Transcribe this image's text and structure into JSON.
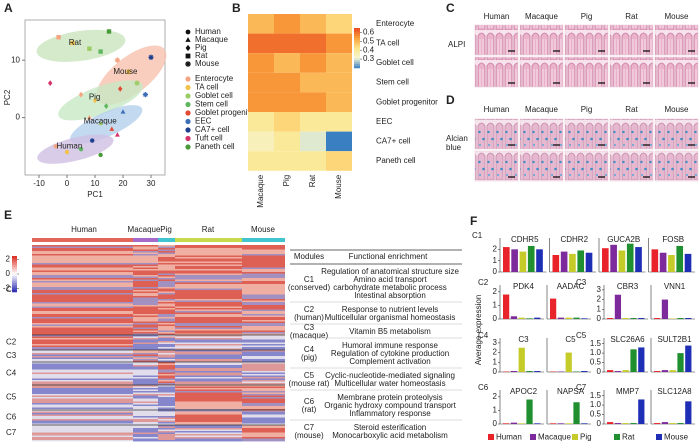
{
  "species": [
    "Human",
    "Macaque",
    "Pig",
    "Rat",
    "Mouse"
  ],
  "panel_a": {
    "letter": "A",
    "xlabel": "PC1",
    "ylabel": "PC2",
    "xlim": [
      -15,
      35
    ],
    "ylim": [
      -10,
      17
    ],
    "xticks": [
      -10,
      0,
      10,
      20,
      30
    ],
    "yticks": [
      0,
      10
    ],
    "species_shapes": [
      "circle",
      "triangle",
      "diamond",
      "square",
      "star"
    ],
    "ellipses": [
      {
        "label": "Rat",
        "color": "#c9e5bd",
        "center": [
          5,
          12.5
        ],
        "rx": 16,
        "ry": 2.6,
        "angle": -8
      },
      {
        "label": "Mouse",
        "color": "#f7c2ae",
        "center": [
          23,
          7.4
        ],
        "rx": 15,
        "ry": 3.2,
        "angle": -38
      },
      {
        "label": "Pig",
        "color": "#c8e8c4",
        "center": [
          12,
          3
        ],
        "rx": 16,
        "ry": 2.4,
        "angle": -20
      },
      {
        "label": "Macaque",
        "color": "#b3cfec",
        "center": [
          14,
          -1.2
        ],
        "rx": 14,
        "ry": 2.1,
        "angle": -24
      },
      {
        "label": "Human",
        "color": "#d0bfe3",
        "center": [
          3,
          -5.5
        ],
        "rx": 14,
        "ry": 2.0,
        "angle": -14
      }
    ],
    "cell_types": [
      {
        "name": "Enterocyte",
        "color": "#f4a582"
      },
      {
        "name": "TA cell",
        "color": "#f2c14e"
      },
      {
        "name": "Goblet cell",
        "color": "#9ccc65"
      },
      {
        "name": "Stem cell",
        "color": "#5fb760"
      },
      {
        "name": "Goblet progenitor",
        "color": "#e34a33"
      },
      {
        "name": "EEC",
        "color": "#3b6fb6"
      },
      {
        "name": "CA7+ cell",
        "color": "#1f3f8f"
      },
      {
        "name": "Tuft cell",
        "color": "#d6336c"
      },
      {
        "name": "Paneth cell",
        "color": "#4a9a3a"
      }
    ],
    "points": [
      [
        -3,
        14,
        3,
        0
      ],
      [
        2,
        13,
        3,
        1
      ],
      [
        8,
        12,
        3,
        2
      ],
      [
        12,
        11.5,
        3,
        3
      ],
      [
        15,
        15,
        3,
        8
      ],
      [
        18,
        10,
        4,
        0
      ],
      [
        22,
        8,
        4,
        1
      ],
      [
        25,
        6,
        4,
        2
      ],
      [
        28,
        4,
        4,
        5
      ],
      [
        30,
        10.5,
        4,
        6
      ],
      [
        5,
        4,
        2,
        0
      ],
      [
        10,
        3,
        2,
        1
      ],
      [
        14,
        2,
        2,
        3
      ],
      [
        19,
        5,
        2,
        4
      ],
      [
        -6,
        6,
        2,
        7
      ],
      [
        8,
        0,
        1,
        0
      ],
      [
        12,
        -1,
        1,
        2
      ],
      [
        16,
        -2,
        1,
        4
      ],
      [
        20,
        1,
        1,
        5
      ],
      [
        18,
        -3,
        1,
        7
      ],
      [
        -4,
        -5,
        0,
        0
      ],
      [
        0,
        -6,
        0,
        1
      ],
      [
        5,
        -5.5,
        0,
        3
      ],
      [
        9,
        -4,
        0,
        6
      ],
      [
        12,
        -6.5,
        0,
        8
      ]
    ]
  },
  "panel_b": {
    "letter": "B",
    "columns": [
      "Macaque",
      "Pig",
      "Rat",
      "Mouse"
    ],
    "rows": [
      "Enterocyte",
      "TA cell",
      "Goblet cell",
      "Stem cell",
      "Goblet progenitor",
      "EEC",
      "CA7+ cell",
      "Paneth cell"
    ],
    "values": [
      [
        0.5,
        0.55,
        0.5,
        0.45
      ],
      [
        0.6,
        0.6,
        0.6,
        0.55
      ],
      [
        0.55,
        0.5,
        0.55,
        0.5
      ],
      [
        0.55,
        0.55,
        0.5,
        0.5
      ],
      [
        0.55,
        0.55,
        0.55,
        0.5
      ],
      [
        0.4,
        0.45,
        0.4,
        0.4
      ],
      [
        0.35,
        0.4,
        0.3,
        0.2
      ],
      [
        0.4,
        0.4,
        0.4,
        0.45
      ]
    ],
    "clim": [
      0.2,
      0.65
    ],
    "cticks": [
      0.6,
      0.5,
      0.4,
      0.3
    ],
    "colormap": [
      "#3a7fc1",
      "#f4f6d2",
      "#fde58a",
      "#f9a13c",
      "#e8471f"
    ]
  },
  "panel_c": {
    "letter": "C",
    "stain": "ALPI"
  },
  "panel_d": {
    "letter": "D",
    "stain": "Alcian blue"
  },
  "panel_e": {
    "letter": "E",
    "bar_colors": [
      "#e4655a",
      "#a66bc9",
      "#40c4d0",
      "#c8d94a",
      "#40c4d0"
    ],
    "cticks": [
      2,
      0,
      -2
    ],
    "clim": [
      -2.5,
      2.5
    ],
    "clusters": [
      "C1",
      "C2",
      "C3",
      "C4",
      "C5",
      "C6",
      "C7"
    ],
    "table_header": [
      "Modules",
      "Functional enrichment"
    ],
    "table": [
      {
        "module": "C1",
        "group": "(conserved)",
        "terms": [
          "Regulation of anatomical structure size",
          "Amino acid transport",
          "carbohydrate metabolic process",
          "Intestinal absorption"
        ]
      },
      {
        "module": "C2",
        "group": "(human)",
        "terms": [
          "Response to nutrient levels",
          "Multicellular organismal homeostasis"
        ]
      },
      {
        "module": "C3",
        "group": "(macaque)",
        "terms": [
          "Vitamin B5 metabolism"
        ]
      },
      {
        "module": "C4",
        "group": "(pig)",
        "terms": [
          "Humoral immune response",
          "Regulation of cytokine production",
          "Complement activation"
        ]
      },
      {
        "module": "C5",
        "group": "(mouse rat)",
        "terms": [
          "Cyclic-nucleotide-mediated signaling",
          "Multicellular water homeostasis"
        ]
      },
      {
        "module": "C6",
        "group": "(rat)",
        "terms": [
          "Membrane protein proteolysis",
          "Organic hydroxy compound transport",
          "Inflammatory response"
        ]
      },
      {
        "module": "C7",
        "group": "(mouse)",
        "terms": [
          "Steroid esterification",
          "Monocarboxylic acid metabolism"
        ]
      }
    ]
  },
  "panel_f": {
    "letter": "F",
    "ylabel": "Average expression",
    "colors": [
      "#e8242a",
      "#7d2a9c",
      "#c5cc2a",
      "#1f8f2f",
      "#1f2fb5"
    ],
    "clusters": [
      {
        "name": "C1",
        "ylim": [
          0,
          3
        ],
        "yticks": [
          0,
          1,
          2
        ],
        "genes": [
          {
            "name": "CDHR5",
            "values": [
              2.2,
              2.0,
              1.8,
              2.3,
              2.0
            ]
          },
          {
            "name": "CDHR2",
            "values": [
              1.5,
              1.8,
              1.6,
              1.9,
              1.7
            ]
          },
          {
            "name": "GUCA2B",
            "values": [
              2.1,
              2.4,
              1.9,
              2.5,
              2.2
            ]
          },
          {
            "name": "FOSB",
            "values": [
              2.0,
              1.7,
              1.5,
              2.3,
              1.6
            ]
          }
        ]
      },
      {
        "name": "C2",
        "ylim": [
          0,
          2.5
        ],
        "yticks": [
          0,
          1,
          2
        ],
        "genes": [
          {
            "name": "PDK4",
            "values": [
              1.8,
              0.2,
              0.1,
              0.05,
              0.1
            ]
          },
          {
            "name": "AADAC",
            "values": [
              1.5,
              0.1,
              0.1,
              0.1,
              0.05
            ]
          }
        ]
      },
      {
        "name": "C3",
        "ylim": [
          0,
          3.5
        ],
        "yticks": [
          0,
          1,
          2,
          3
        ],
        "genes": [
          {
            "name": "CBR3",
            "values": [
              0.1,
              2.5,
              0.1,
              0.1,
              0.1
            ]
          },
          {
            "name": "VNN1",
            "values": [
              0.1,
              2.0,
              0.05,
              0.1,
              0.1
            ]
          }
        ]
      },
      {
        "name": "C4",
        "ylim": [
          0,
          3.5
        ],
        "yticks": [
          0,
          1,
          2,
          3
        ],
        "genes": [
          {
            "name": "C3",
            "values": [
              0.05,
              0.1,
              2.5,
              0.1,
              0.1
            ]
          },
          {
            "name": "C5",
            "values": [
              0.05,
              0.05,
              2.0,
              0.05,
              0.1
            ]
          }
        ]
      },
      {
        "name": "C5",
        "ylim": [
          0,
          1.8
        ],
        "yticks": [
          0,
          {
            "value": 0.5,
            "label": "0.5"
          },
          {
            "value": 1,
            "label": "1.0"
          },
          {
            "value": 1.5,
            "label": "1.5"
          }
        ],
        "genes": [
          {
            "name": "SLC26A6",
            "values": [
              0.1,
              0.05,
              0.1,
              1.2,
              1.3
            ]
          },
          {
            "name": "SULT2B1",
            "values": [
              0.05,
              0.1,
              0.1,
              1.0,
              1.4
            ]
          }
        ]
      },
      {
        "name": "C6",
        "ylim": [
          0,
          2.5
        ],
        "yticks": [
          0,
          1,
          2
        ],
        "genes": [
          {
            "name": "APOC2",
            "values": [
              0.05,
              0.1,
              0.05,
              1.8,
              0.05
            ]
          },
          {
            "name": "NAPSA",
            "values": [
              0.05,
              0.05,
              0.05,
              1.6,
              0.05
            ]
          }
        ]
      },
      {
        "name": "C7",
        "ylim": [
          0,
          1.8
        ],
        "yticks": [
          0,
          {
            "value": 0.5,
            "label": "0.5"
          },
          {
            "value": 1,
            "label": "1.0"
          },
          {
            "value": 1.5,
            "label": "1.5"
          }
        ],
        "genes": [
          {
            "name": "MMP7",
            "values": [
              0.1,
              0.05,
              0.05,
              0.05,
              1.3
            ]
          },
          {
            "name": "SLC12A8",
            "values": [
              0.05,
              0.1,
              0.05,
              0.05,
              1.2
            ]
          }
        ]
      }
    ]
  }
}
